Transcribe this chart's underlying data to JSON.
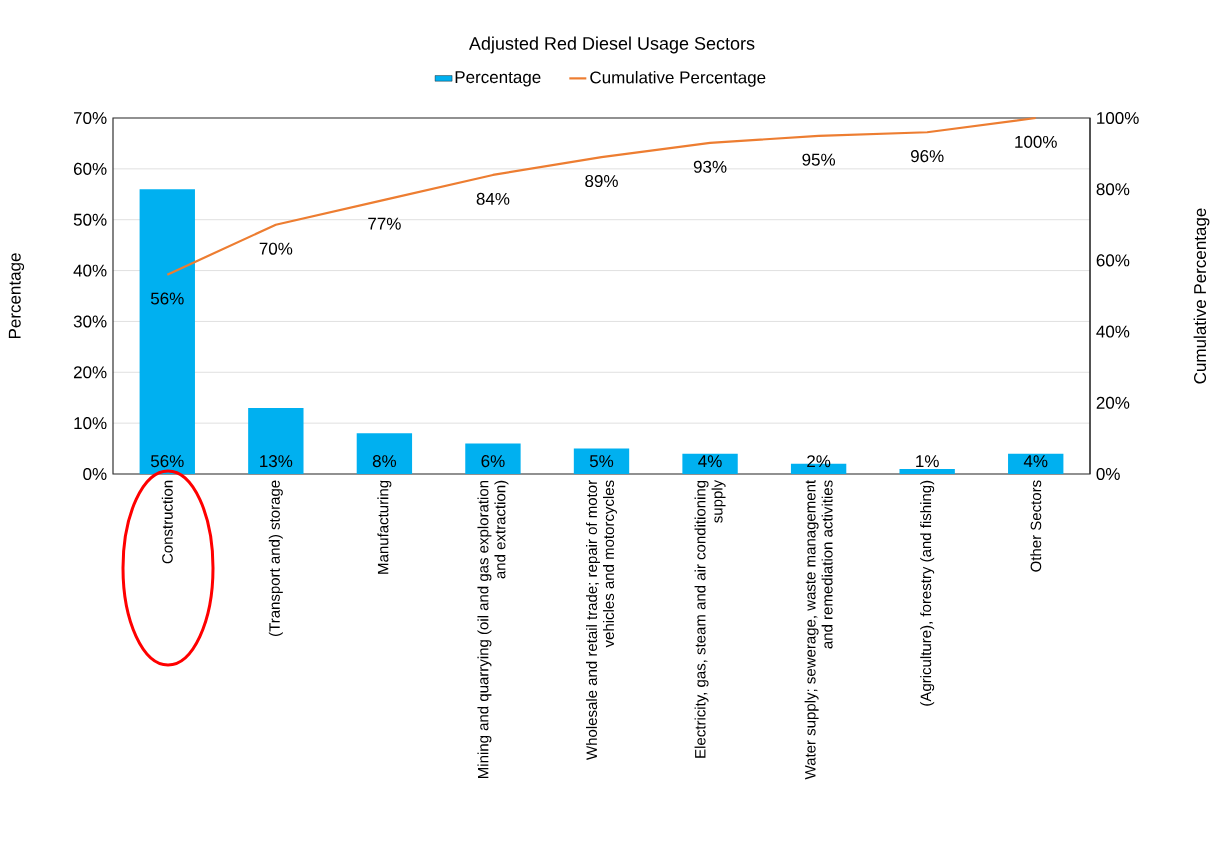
{
  "chart_data": {
    "type": "bar",
    "title": "Adjusted Red Diesel Usage Sectors",
    "ylabel": "Percentage",
    "y2label": "Cumulative Percentage",
    "categories": [
      "Construction",
      "(Transport and) storage",
      "Manufacturing",
      "Mining and quarrying (oil and gas exploration and extraction)",
      "Wholesale and retail trade; repair of motor vehicles and motorcycles",
      "Electricity, gas, steam and air conditioning supply",
      "Water supply; sewerage, waste management and remediation activities",
      "(Agriculture), forestry (and fishing)",
      "Other Sectors"
    ],
    "series": [
      {
        "name": "Percentage",
        "color": "#00b0f0",
        "values": [
          56,
          13,
          8,
          6,
          5,
          4,
          2,
          1,
          4
        ],
        "value_labels": [
          "56%",
          "13%",
          "8%",
          "6%",
          "5%",
          "4%",
          "2%",
          "1%",
          "4%"
        ]
      },
      {
        "name": "Cumulative Percentage",
        "type": "line",
        "axis": "y2",
        "color": "#ed7d31",
        "values": [
          56,
          70,
          77,
          84,
          89,
          93,
          95,
          96,
          100
        ],
        "value_labels": [
          "56%",
          "70%",
          "77%",
          "84%",
          "89%",
          "93%",
          "95%",
          "96%",
          "100%"
        ]
      }
    ],
    "ylim": [
      0,
      70
    ],
    "yticks": [
      {
        "value": 0,
        "label": "0%"
      },
      {
        "value": 10,
        "label": "10%"
      },
      {
        "value": 20,
        "label": "20%"
      },
      {
        "value": 30,
        "label": "30%"
      },
      {
        "value": 40,
        "label": "40%"
      },
      {
        "value": 50,
        "label": "50%"
      },
      {
        "value": 60,
        "label": "60%"
      },
      {
        "value": 70,
        "label": "70%"
      }
    ],
    "y2lim": [
      0,
      100
    ],
    "y2ticks": [
      {
        "value": 0,
        "label": "0%"
      },
      {
        "value": 20,
        "label": "20%"
      },
      {
        "value": 40,
        "label": "40%"
      },
      {
        "value": 60,
        "label": "60%"
      },
      {
        "value": 80,
        "label": "80%"
      },
      {
        "value": 100,
        "label": "100%"
      }
    ],
    "grid": "y",
    "legend": "top",
    "marker": "none"
  }
}
